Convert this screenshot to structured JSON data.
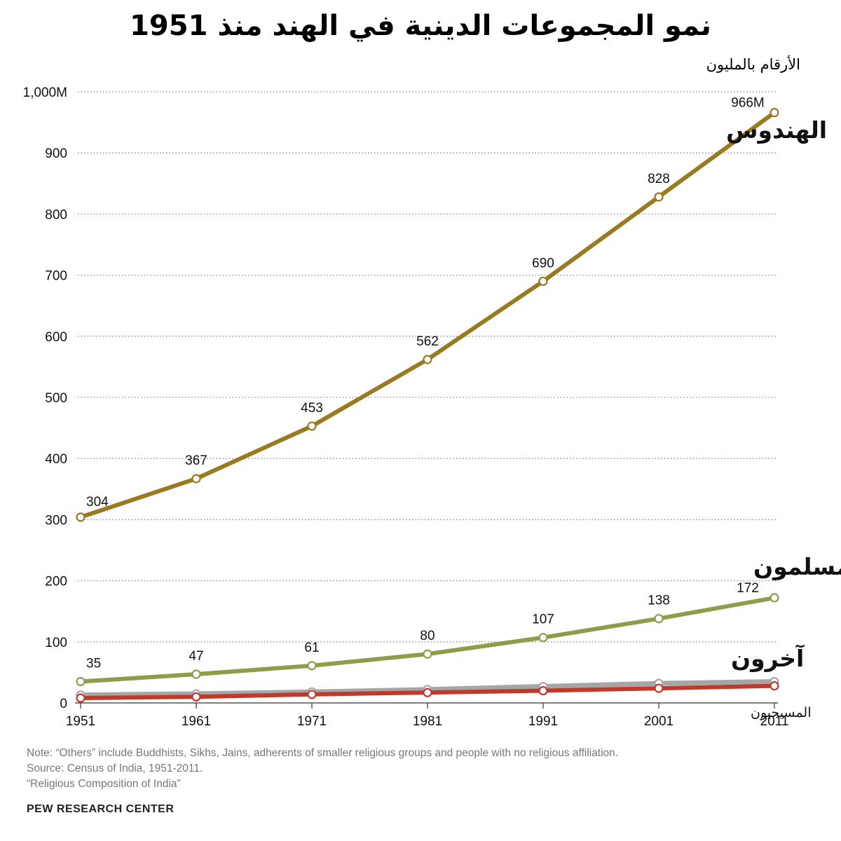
{
  "title": "نمو المجموعات الدينية في الهند منذ 1951",
  "subtitle": "الأرقام بالمليون",
  "footer": {
    "note": "Note: “Others” include Buddhists, Sikhs, Jains, adherents of smaller religious groups and people with no religious affiliation.",
    "source": "Source: Census of India, 1951-2011.",
    "report": "“Religious Composition of India”",
    "brand": "PEW RESEARCH CENTER"
  },
  "chart_data": {
    "type": "line",
    "title": "نمو المجموعات الدينية في الهند منذ 1951",
    "subtitle": "الأرقام بالمليون",
    "x": [
      1951,
      1961,
      1971,
      1981,
      1991,
      2001,
      2011
    ],
    "x_tick_labels": [
      "1951",
      "1961",
      "1971",
      "1981",
      "1991",
      "2001",
      "2011"
    ],
    "ylim": [
      0,
      1000
    ],
    "y_ticks": [
      0,
      100,
      200,
      300,
      400,
      500,
      600,
      700,
      800,
      900,
      1000
    ],
    "y_tick_labels": [
      "0",
      "100",
      "200",
      "300",
      "400",
      "500",
      "600",
      "700",
      "800",
      "900",
      "1,000M"
    ],
    "grid": "horizontal dotted",
    "series": [
      {
        "name": "الهندوس",
        "color": "#9a7a21",
        "values": [
          304,
          367,
          453,
          562,
          690,
          828,
          966
        ],
        "data_labels": [
          "304",
          "367",
          "453",
          "562",
          "690",
          "828",
          "966M"
        ]
      },
      {
        "name": "المسلمون",
        "color": "#8c9e4a",
        "values": [
          35,
          47,
          61,
          80,
          107,
          138,
          172
        ],
        "data_labels": [
          "35",
          "47",
          "61",
          "80",
          "107",
          "138",
          "172"
        ]
      },
      {
        "name": "آخرون",
        "color": "#a6a6a6",
        "values": [
          13,
          15,
          18,
          22,
          27,
          32,
          35
        ],
        "data_labels": []
      },
      {
        "name": "المسيحيون",
        "color": "#c0392b",
        "values": [
          8,
          10,
          14,
          17,
          20,
          24,
          28
        ],
        "data_labels": []
      }
    ]
  }
}
